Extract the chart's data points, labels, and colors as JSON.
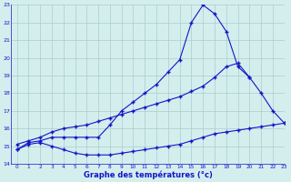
{
  "line1_x": [
    0,
    1,
    2,
    3,
    4,
    5,
    6,
    7,
    8,
    9,
    10,
    11,
    12,
    13,
    14,
    15,
    16,
    17,
    18,
    19,
    20,
    21,
    22,
    23
  ],
  "line1_y": [
    14.8,
    15.2,
    15.3,
    15.5,
    15.5,
    15.5,
    15.5,
    15.5,
    16.2,
    17.0,
    17.5,
    18.0,
    18.5,
    19.2,
    19.9,
    22.0,
    23.0,
    22.5,
    21.5,
    19.5,
    18.9,
    null,
    null,
    null
  ],
  "line2_x": [
    0,
    1,
    2,
    3,
    4,
    5,
    6,
    7,
    8,
    9,
    10,
    11,
    12,
    13,
    14,
    15,
    16,
    17,
    18,
    19,
    20,
    21,
    22,
    23
  ],
  "line2_y": [
    15.1,
    15.3,
    15.5,
    15.8,
    16.0,
    16.1,
    16.2,
    16.4,
    16.6,
    16.8,
    17.0,
    17.2,
    17.4,
    17.6,
    17.8,
    18.1,
    18.4,
    18.9,
    19.5,
    19.7,
    18.9,
    18.0,
    17.0,
    16.3
  ],
  "line3_x": [
    0,
    1,
    2,
    3,
    4,
    5,
    6,
    7,
    8,
    9,
    10,
    11,
    12,
    13,
    14,
    15,
    16,
    17,
    18,
    19,
    20,
    21,
    22,
    23
  ],
  "line3_y": [
    14.8,
    15.1,
    15.2,
    15.0,
    14.8,
    14.6,
    14.5,
    14.5,
    14.5,
    14.6,
    14.7,
    14.8,
    14.9,
    15.0,
    15.1,
    15.3,
    15.5,
    15.7,
    15.8,
    15.9,
    16.0,
    16.1,
    16.2,
    16.3
  ],
  "line_color": "#1414c8",
  "bg_color": "#d4eeee",
  "grid_color": "#aacccc",
  "ylim": [
    14,
    23
  ],
  "xlim": [
    -0.5,
    23
  ],
  "yticks": [
    14,
    15,
    16,
    17,
    18,
    19,
    20,
    21,
    22,
    23
  ],
  "xticks": [
    0,
    1,
    2,
    3,
    4,
    5,
    6,
    7,
    8,
    9,
    10,
    11,
    12,
    13,
    14,
    15,
    16,
    17,
    18,
    19,
    20,
    21,
    22,
    23
  ],
  "xlabel": "Graphe des températures (°c)",
  "marker": "+",
  "markersize": 3.5,
  "linewidth": 0.8
}
